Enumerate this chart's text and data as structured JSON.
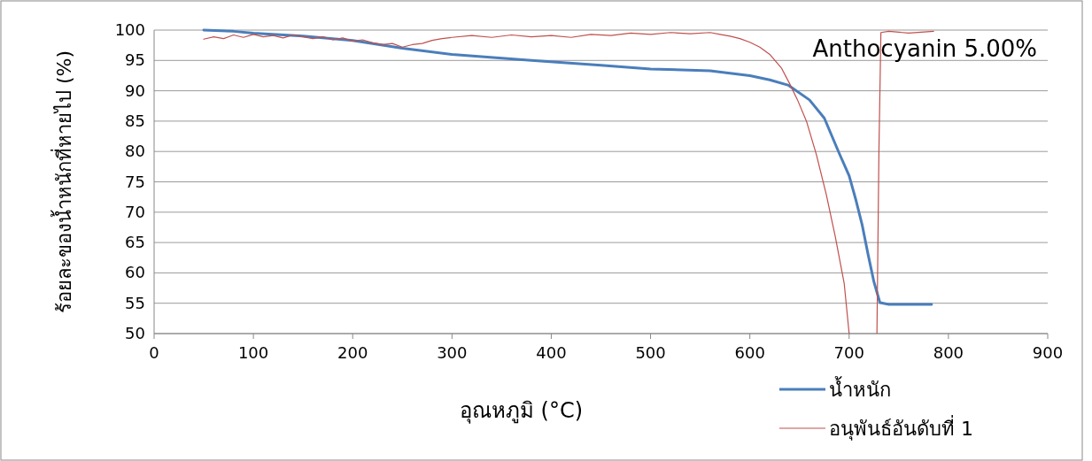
{
  "chart_data": {
    "type": "line",
    "xlabel": "อุณหภูมิ (°C)",
    "ylabel": "ร้อยละของน้ำหนักที่หายไป (%)",
    "annotations": [
      "Anthocyanin 5.00%"
    ],
    "xlim": [
      0,
      900
    ],
    "ylim": [
      50,
      100
    ],
    "xticks": [
      0,
      100,
      200,
      300,
      400,
      500,
      600,
      700,
      800,
      900
    ],
    "yticks": [
      50,
      55,
      60,
      65,
      70,
      75,
      80,
      85,
      90,
      95,
      100
    ],
    "grid": "y",
    "legend": "bottom right",
    "line_style": "solid",
    "marker": "none",
    "series": [
      {
        "name": "น้ำหนัก",
        "color": "#4a7ebb",
        "x": [
          50,
          80,
          100,
          150,
          200,
          250,
          300,
          380,
          450,
          500,
          560,
          600,
          620,
          639,
          660,
          675,
          690,
          700,
          707,
          713,
          719,
          725,
          731,
          740,
          760,
          783
        ],
        "values": [
          100,
          99.8,
          99.5,
          99,
          98.3,
          97,
          96,
          95,
          94.2,
          93.6,
          93.3,
          92.5,
          91.8,
          90.9,
          88.5,
          85.5,
          79.7,
          76,
          71.9,
          68,
          63.1,
          58.5,
          55.1,
          54.8,
          54.8,
          54.8
        ]
      },
      {
        "name": "อนุพันธ์อันดับที่ 1",
        "color": "#c0504d",
        "x": [
          50,
          60,
          70,
          80,
          90,
          100,
          110,
          120,
          130,
          140,
          150,
          160,
          170,
          180,
          190,
          200,
          210,
          220,
          230,
          240,
          250,
          260,
          270,
          280,
          290,
          300,
          320,
          340,
          360,
          380,
          400,
          420,
          440,
          460,
          480,
          500,
          520,
          540,
          560,
          570,
          580,
          590,
          600,
          610,
          620,
          632,
          640,
          648,
          657,
          667,
          677,
          686,
          695,
          700,
          701,
          727,
          728,
          730,
          732,
          740,
          760,
          785
        ],
        "values": [
          98.5,
          98.9,
          98.6,
          99.2,
          98.8,
          99.3,
          98.9,
          99.1,
          98.7,
          99.2,
          98.9,
          98.6,
          98.9,
          98.4,
          98.7,
          98.2,
          98.4,
          97.9,
          97.6,
          97.8,
          97.2,
          97.6,
          97.8,
          98.3,
          98.6,
          98.8,
          99.1,
          98.8,
          99.2,
          98.9,
          99.1,
          98.8,
          99.3,
          99.1,
          99.5,
          99.3,
          99.6,
          99.4,
          99.6,
          99.3,
          99,
          98.6,
          98,
          97.2,
          96,
          93.7,
          91.2,
          88.5,
          85,
          79.5,
          72.9,
          66,
          58.3,
          50,
          null,
          null,
          50,
          80,
          99.6,
          99.8,
          99.5,
          99.8
        ]
      }
    ]
  }
}
